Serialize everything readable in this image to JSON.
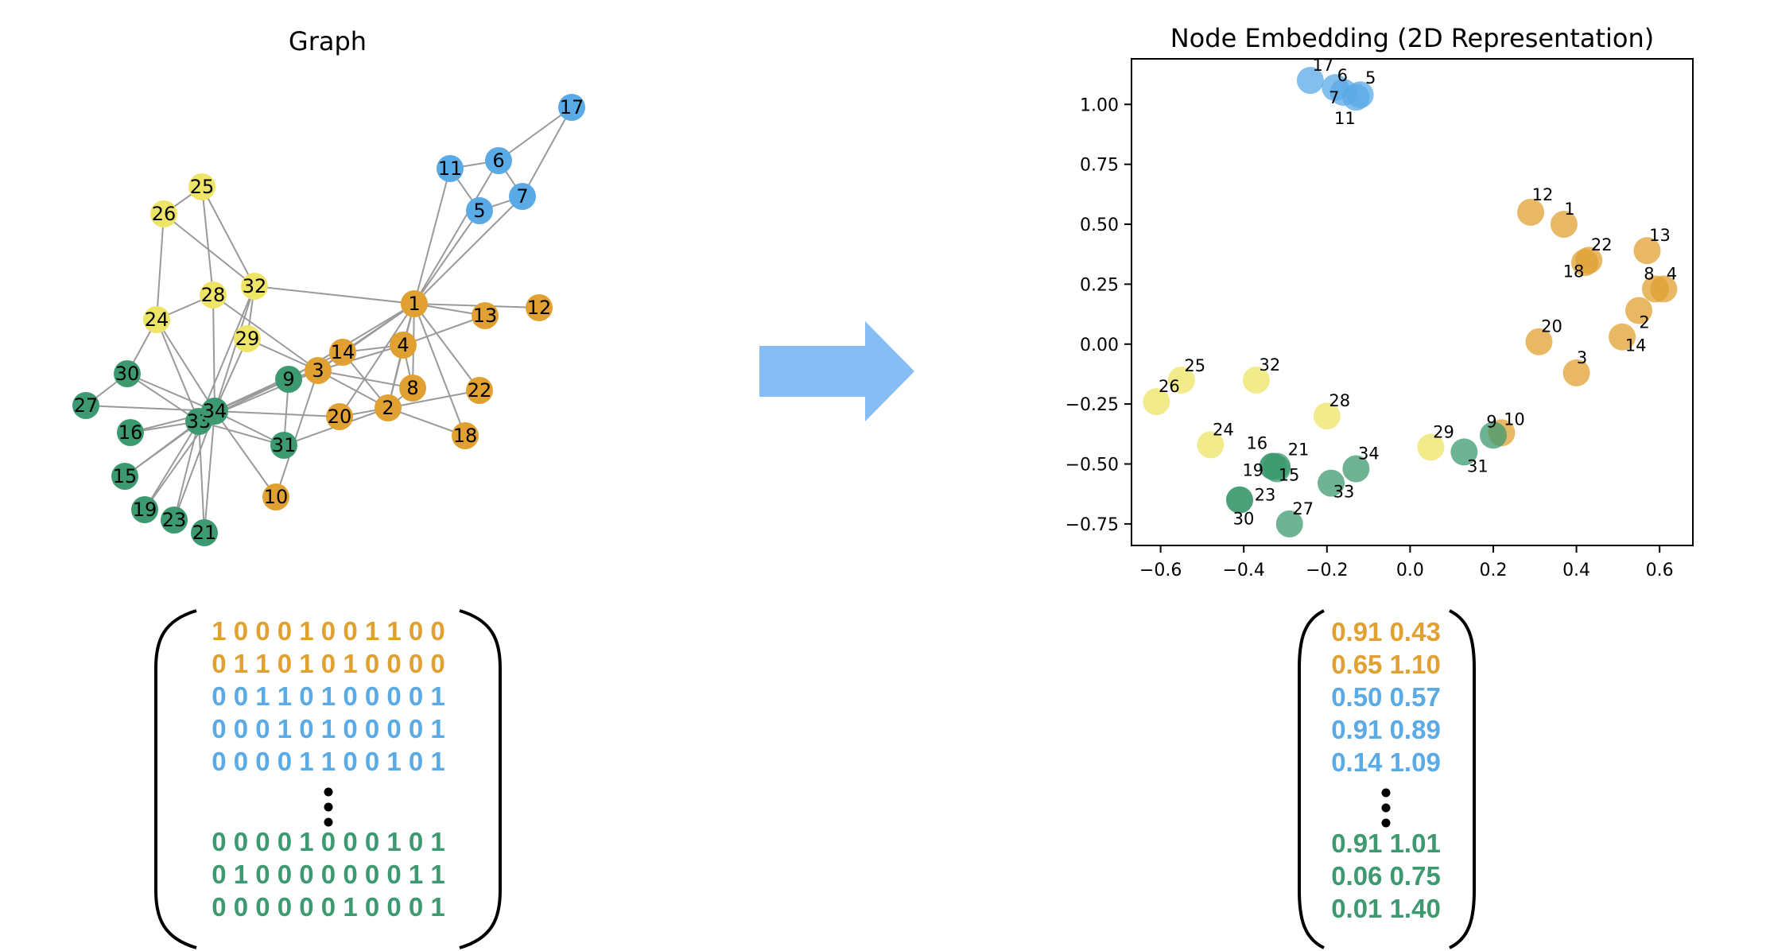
{
  "colors": {
    "orange": "#E0A032",
    "blue": "#5AAAE6",
    "yellow": "#EEE466",
    "green": "#3D9A70",
    "edge": "#9a9a9a",
    "arrow": "#86BDF5"
  },
  "graph_panel": {
    "title": "Graph",
    "nodes": [
      {
        "id": "1",
        "group": "orange"
      },
      {
        "id": "2",
        "group": "orange"
      },
      {
        "id": "3",
        "group": "orange"
      },
      {
        "id": "4",
        "group": "orange"
      },
      {
        "id": "5",
        "group": "blue"
      },
      {
        "id": "6",
        "group": "blue"
      },
      {
        "id": "7",
        "group": "blue"
      },
      {
        "id": "8",
        "group": "orange"
      },
      {
        "id": "9",
        "group": "green"
      },
      {
        "id": "10",
        "group": "orange"
      },
      {
        "id": "11",
        "group": "blue"
      },
      {
        "id": "12",
        "group": "orange"
      },
      {
        "id": "13",
        "group": "orange"
      },
      {
        "id": "14",
        "group": "orange"
      },
      {
        "id": "15",
        "group": "green"
      },
      {
        "id": "16",
        "group": "green"
      },
      {
        "id": "17",
        "group": "blue"
      },
      {
        "id": "18",
        "group": "orange"
      },
      {
        "id": "19",
        "group": "green"
      },
      {
        "id": "20",
        "group": "orange"
      },
      {
        "id": "21",
        "group": "green"
      },
      {
        "id": "22",
        "group": "orange"
      },
      {
        "id": "23",
        "group": "green"
      },
      {
        "id": "24",
        "group": "yellow"
      },
      {
        "id": "25",
        "group": "yellow"
      },
      {
        "id": "26",
        "group": "yellow"
      },
      {
        "id": "27",
        "group": "green"
      },
      {
        "id": "28",
        "group": "yellow"
      },
      {
        "id": "29",
        "group": "yellow"
      },
      {
        "id": "30",
        "group": "green"
      },
      {
        "id": "31",
        "group": "green"
      },
      {
        "id": "32",
        "group": "yellow"
      },
      {
        "id": "33",
        "group": "green"
      },
      {
        "id": "34",
        "group": "green"
      }
    ],
    "edges": [
      [
        "1",
        "2"
      ],
      [
        "1",
        "3"
      ],
      [
        "1",
        "4"
      ],
      [
        "1",
        "5"
      ],
      [
        "1",
        "6"
      ],
      [
        "1",
        "7"
      ],
      [
        "1",
        "8"
      ],
      [
        "1",
        "9"
      ],
      [
        "1",
        "11"
      ],
      [
        "1",
        "12"
      ],
      [
        "1",
        "13"
      ],
      [
        "1",
        "14"
      ],
      [
        "1",
        "18"
      ],
      [
        "1",
        "20"
      ],
      [
        "1",
        "22"
      ],
      [
        "1",
        "32"
      ],
      [
        "2",
        "3"
      ],
      [
        "2",
        "4"
      ],
      [
        "2",
        "8"
      ],
      [
        "2",
        "14"
      ],
      [
        "2",
        "18"
      ],
      [
        "2",
        "20"
      ],
      [
        "2",
        "22"
      ],
      [
        "2",
        "31"
      ],
      [
        "3",
        "4"
      ],
      [
        "3",
        "8"
      ],
      [
        "3",
        "9"
      ],
      [
        "3",
        "10"
      ],
      [
        "3",
        "14"
      ],
      [
        "3",
        "28"
      ],
      [
        "3",
        "29"
      ],
      [
        "3",
        "33"
      ],
      [
        "4",
        "8"
      ],
      [
        "4",
        "13"
      ],
      [
        "4",
        "14"
      ],
      [
        "5",
        "7"
      ],
      [
        "5",
        "11"
      ],
      [
        "6",
        "7"
      ],
      [
        "6",
        "11"
      ],
      [
        "6",
        "17"
      ],
      [
        "7",
        "17"
      ],
      [
        "9",
        "31"
      ],
      [
        "9",
        "33"
      ],
      [
        "9",
        "34"
      ],
      [
        "10",
        "34"
      ],
      [
        "14",
        "34"
      ],
      [
        "15",
        "33"
      ],
      [
        "15",
        "34"
      ],
      [
        "16",
        "33"
      ],
      [
        "16",
        "34"
      ],
      [
        "19",
        "33"
      ],
      [
        "19",
        "34"
      ],
      [
        "20",
        "34"
      ],
      [
        "21",
        "33"
      ],
      [
        "21",
        "34"
      ],
      [
        "23",
        "33"
      ],
      [
        "23",
        "34"
      ],
      [
        "24",
        "26"
      ],
      [
        "24",
        "28"
      ],
      [
        "24",
        "30"
      ],
      [
        "24",
        "33"
      ],
      [
        "24",
        "34"
      ],
      [
        "25",
        "26"
      ],
      [
        "25",
        "28"
      ],
      [
        "25",
        "32"
      ],
      [
        "26",
        "32"
      ],
      [
        "27",
        "30"
      ],
      [
        "27",
        "34"
      ],
      [
        "28",
        "34"
      ],
      [
        "29",
        "32"
      ],
      [
        "29",
        "34"
      ],
      [
        "30",
        "33"
      ],
      [
        "30",
        "34"
      ],
      [
        "31",
        "33"
      ],
      [
        "31",
        "34"
      ],
      [
        "32",
        "33"
      ],
      [
        "32",
        "34"
      ],
      [
        "33",
        "34"
      ]
    ]
  },
  "embedding_panel": {
    "title": "Node Embedding (2D Representation)",
    "chart_data": {
      "type": "scatter",
      "title": "Node Embedding (2D Representation)",
      "xlim": [
        -0.67,
        0.68
      ],
      "ylim": [
        -0.84,
        1.19
      ],
      "xticks": [
        "−0.6",
        "−0.4",
        "−0.2",
        "0.0",
        "0.2",
        "0.4",
        "0.6"
      ],
      "yticks": [
        "−0.75",
        "−0.50",
        "−0.25",
        "0.00",
        "0.25",
        "0.50",
        "0.75",
        "1.00"
      ],
      "xtick_values": [
        -0.6,
        -0.4,
        -0.2,
        0.0,
        0.2,
        0.4,
        0.6
      ],
      "ytick_values": [
        -0.75,
        -0.5,
        -0.25,
        0.0,
        0.25,
        0.5,
        0.75,
        1.0
      ],
      "points": [
        {
          "id": "17",
          "x": -0.24,
          "y": 1.1,
          "group": "blue"
        },
        {
          "id": "6",
          "x": -0.18,
          "y": 1.07,
          "group": "blue"
        },
        {
          "id": "7",
          "x": -0.16,
          "y": 1.05,
          "group": "blue"
        },
        {
          "id": "5",
          "x": -0.12,
          "y": 1.04,
          "group": "blue"
        },
        {
          "id": "11",
          "x": -0.13,
          "y": 1.03,
          "group": "blue"
        },
        {
          "id": "12",
          "x": 0.29,
          "y": 0.55,
          "group": "orange"
        },
        {
          "id": "1",
          "x": 0.37,
          "y": 0.5,
          "group": "orange"
        },
        {
          "id": "22",
          "x": 0.43,
          "y": 0.35,
          "group": "orange"
        },
        {
          "id": "18",
          "x": 0.42,
          "y": 0.34,
          "group": "orange"
        },
        {
          "id": "13",
          "x": 0.57,
          "y": 0.39,
          "group": "orange"
        },
        {
          "id": "8",
          "x": 0.59,
          "y": 0.23,
          "group": "orange"
        },
        {
          "id": "4",
          "x": 0.61,
          "y": 0.23,
          "group": "orange"
        },
        {
          "id": "2",
          "x": 0.55,
          "y": 0.14,
          "group": "orange"
        },
        {
          "id": "14",
          "x": 0.51,
          "y": 0.03,
          "group": "orange"
        },
        {
          "id": "20",
          "x": 0.31,
          "y": 0.01,
          "group": "orange"
        },
        {
          "id": "3",
          "x": 0.4,
          "y": -0.12,
          "group": "orange"
        },
        {
          "id": "10",
          "x": 0.22,
          "y": -0.37,
          "group": "orange"
        },
        {
          "id": "9",
          "x": 0.2,
          "y": -0.38,
          "group": "green"
        },
        {
          "id": "31",
          "x": 0.13,
          "y": -0.45,
          "group": "green"
        },
        {
          "id": "29",
          "x": 0.05,
          "y": -0.43,
          "group": "yellow"
        },
        {
          "id": "25",
          "x": -0.55,
          "y": -0.15,
          "group": "yellow"
        },
        {
          "id": "26",
          "x": -0.61,
          "y": -0.24,
          "group": "yellow"
        },
        {
          "id": "32",
          "x": -0.37,
          "y": -0.15,
          "group": "yellow"
        },
        {
          "id": "28",
          "x": -0.2,
          "y": -0.3,
          "group": "yellow"
        },
        {
          "id": "24",
          "x": -0.48,
          "y": -0.42,
          "group": "yellow"
        },
        {
          "id": "16",
          "x": -0.33,
          "y": -0.51,
          "group": "green"
        },
        {
          "id": "21",
          "x": -0.32,
          "y": -0.51,
          "group": "green"
        },
        {
          "id": "19",
          "x": -0.33,
          "y": -0.51,
          "group": "green"
        },
        {
          "id": "15",
          "x": -0.32,
          "y": -0.52,
          "group": "green"
        },
        {
          "id": "34",
          "x": -0.13,
          "y": -0.52,
          "group": "green"
        },
        {
          "id": "33",
          "x": -0.19,
          "y": -0.58,
          "group": "green"
        },
        {
          "id": "23",
          "x": -0.41,
          "y": -0.65,
          "group": "green"
        },
        {
          "id": "30",
          "x": -0.41,
          "y": -0.65,
          "group": "green"
        },
        {
          "id": "27",
          "x": -0.29,
          "y": -0.75,
          "group": "green"
        }
      ]
    }
  },
  "adjacency_matrix": {
    "rows": [
      {
        "text": "1 0 0 0 1 0 0 1 1 0 0",
        "group": "orange"
      },
      {
        "text": "0 1 1 0 1 0 1 0 0 0 0",
        "group": "orange"
      },
      {
        "text": "0 0 1 1 0 1 0 0 0 0 1",
        "group": "blue"
      },
      {
        "text": "0 0 0 1 0 1 0 0 0 0 1",
        "group": "blue"
      },
      {
        "text": "0 0 0 0 1 1 0 0 1 0 1",
        "group": "blue"
      },
      {
        "text": "0 0 0 0 1 0 0 0 1 0 1",
        "group": "green"
      },
      {
        "text": "0 1 0 0 0 0 0 0 0 1 1",
        "group": "green"
      },
      {
        "text": "0 0 0 0 0 0 1 0 0 0 1",
        "group": "green"
      }
    ]
  },
  "embedding_matrix": {
    "rows": [
      {
        "text": "0.91 0.43",
        "group": "orange"
      },
      {
        "text": "0.65 1.10",
        "group": "orange"
      },
      {
        "text": "0.50 0.57",
        "group": "blue"
      },
      {
        "text": "0.91 0.89",
        "group": "blue"
      },
      {
        "text": "0.14 1.09",
        "group": "blue"
      },
      {
        "text": "0.91 1.01",
        "group": "green"
      },
      {
        "text": "0.06 0.75",
        "group": "green"
      },
      {
        "text": "0.01 1.40",
        "group": "green"
      }
    ]
  }
}
